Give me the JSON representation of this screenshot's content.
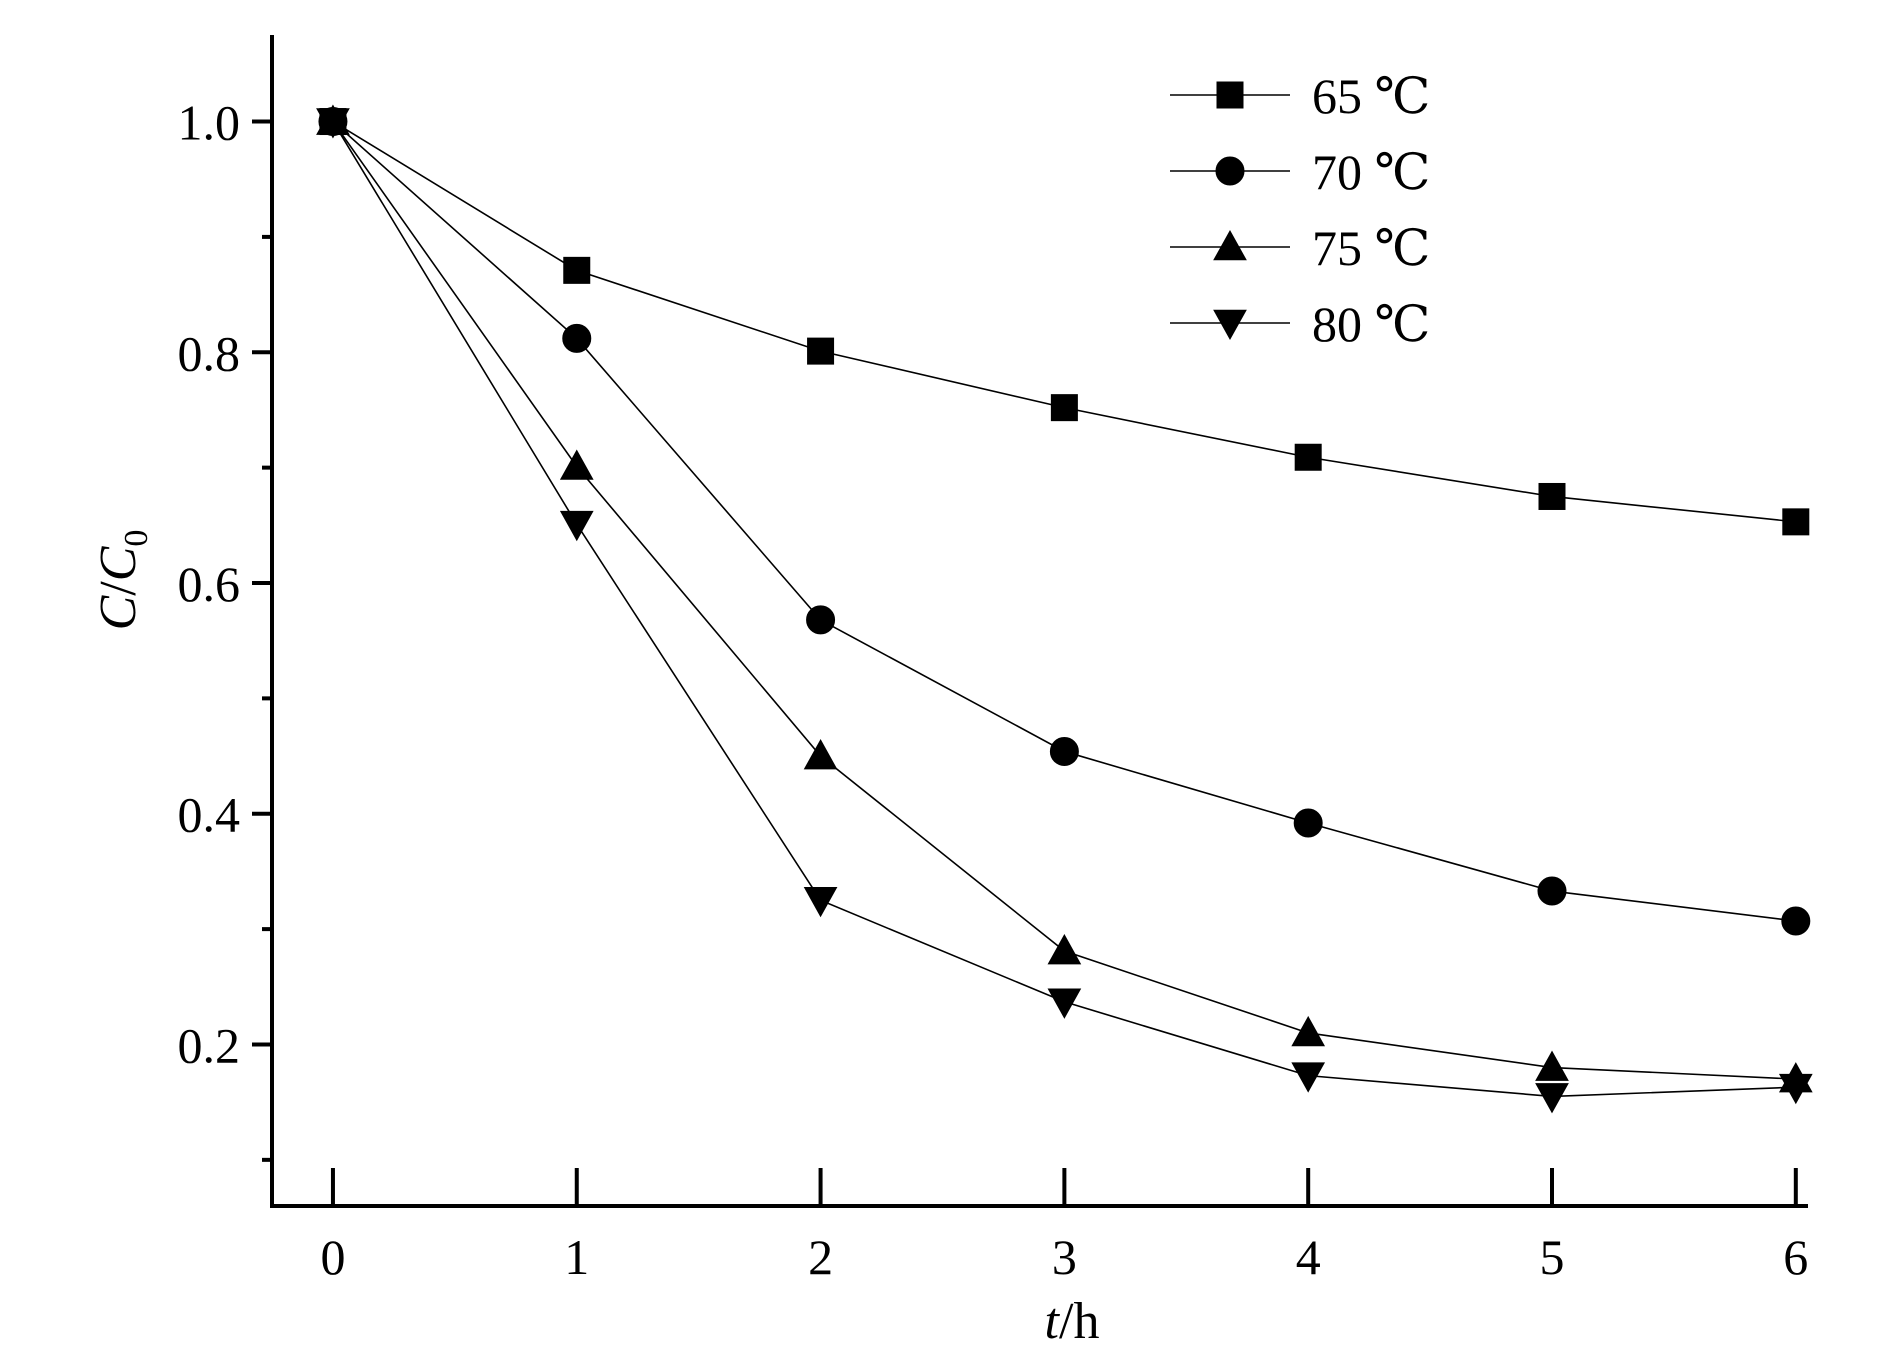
{
  "chart_data": {
    "type": "line",
    "title": "",
    "xlabel": {
      "italic": "t",
      "rest": "/h"
    },
    "ylabel": {
      "italic": "C",
      "slash": "/",
      "italic2": "C",
      "sub": "0"
    },
    "x": [
      0,
      1,
      2,
      3,
      4,
      5,
      6
    ],
    "xlim": [
      -0.25,
      6.05
    ],
    "ylim": [
      0.06,
      1.075
    ],
    "xticks": [
      "0",
      "1",
      "2",
      "3",
      "4",
      "5",
      "6"
    ],
    "yticks": [
      {
        "value": 0.2,
        "label": "0.2"
      },
      {
        "value": 0.4,
        "label": "0.4"
      },
      {
        "value": 0.6,
        "label": "0.6"
      },
      {
        "value": 0.8,
        "label": "0.8"
      },
      {
        "value": 1.0,
        "label": "1.0"
      }
    ],
    "grid": false,
    "legend_position": "top-right",
    "series": [
      {
        "name": "65 ℃",
        "marker": "square",
        "values": [
          1.0,
          0.871,
          0.801,
          0.752,
          0.709,
          0.675,
          0.653
        ]
      },
      {
        "name": "70 ℃",
        "marker": "circle",
        "values": [
          1.0,
          0.812,
          0.568,
          0.454,
          0.392,
          0.333,
          0.307
        ]
      },
      {
        "name": "75 ℃",
        "marker": "triangle-up",
        "values": [
          1.0,
          0.701,
          0.45,
          0.281,
          0.21,
          0.18,
          0.17
        ]
      },
      {
        "name": "80 ℃",
        "marker": "triangle-down",
        "values": [
          1.0,
          0.651,
          0.325,
          0.237,
          0.173,
          0.155,
          0.163
        ]
      }
    ]
  }
}
